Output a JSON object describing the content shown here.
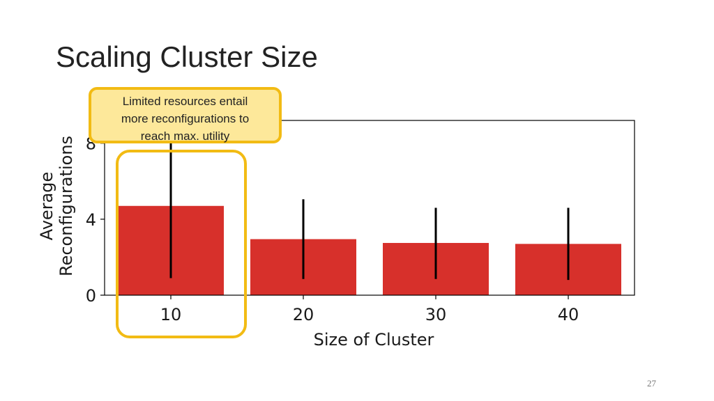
{
  "slide": {
    "title": "Scaling Cluster Size",
    "page_number": "27",
    "callout": {
      "lines": [
        "Limited resources entail",
        "more reconfigurations to",
        "reach max. utility"
      ]
    }
  },
  "chart_data": {
    "type": "bar",
    "title": "",
    "categories": [
      "10",
      "20",
      "30",
      "40"
    ],
    "values": [
      4.7,
      2.95,
      2.75,
      2.7
    ],
    "error_bars": [
      {
        "low": 0.9,
        "high": 8.0
      },
      {
        "low": 0.85,
        "high": 5.05
      },
      {
        "low": 0.85,
        "high": 4.6
      },
      {
        "low": 0.8,
        "high": 4.6
      }
    ],
    "xlabel": "Size of Cluster",
    "ylabel": [
      "Average",
      "Reconfigurations"
    ],
    "ylim": [
      0,
      9.2
    ],
    "yticks": [
      0,
      4,
      8
    ],
    "grid": false,
    "colors": {
      "bar": "#d7302b",
      "error": "#000000",
      "highlight": "#f2bb14"
    }
  }
}
